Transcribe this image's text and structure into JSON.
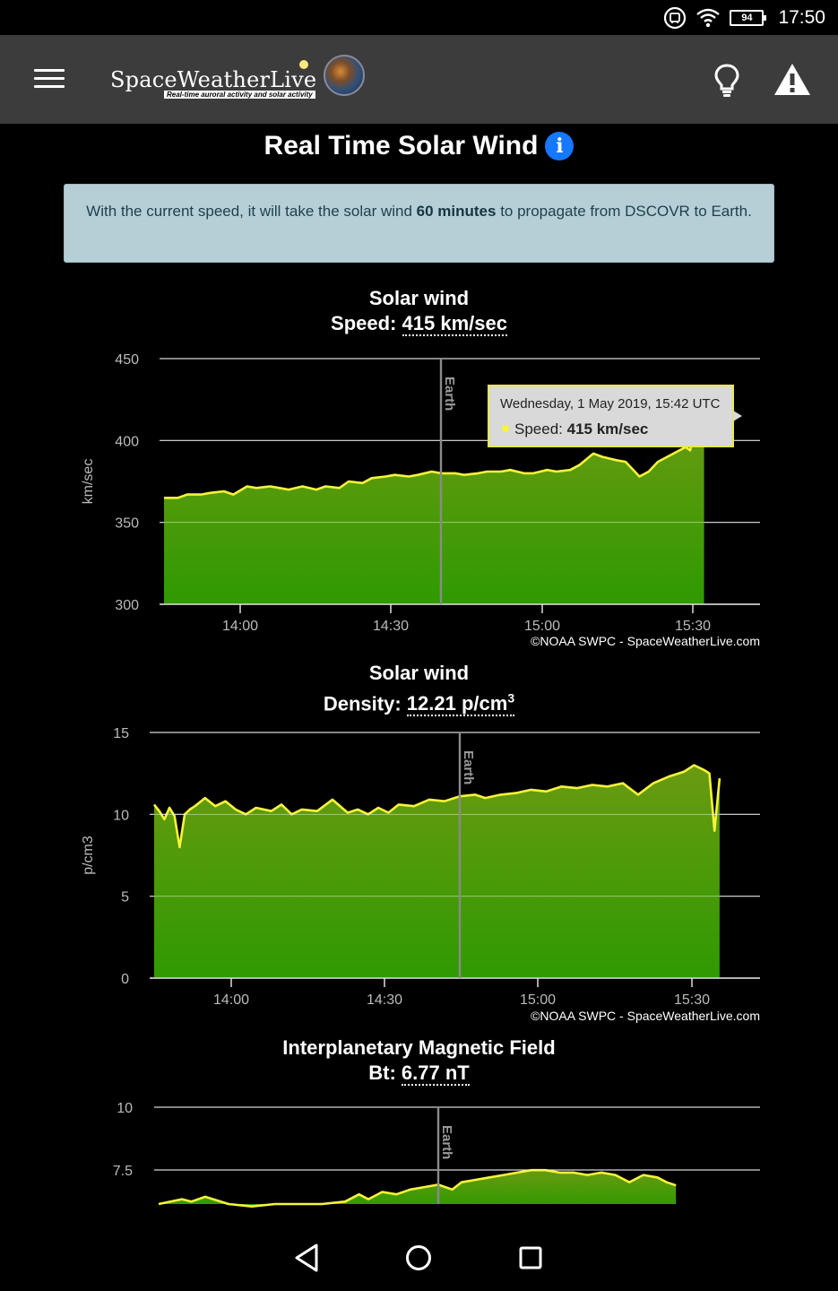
{
  "status": {
    "time": "17:50",
    "battery": "94"
  },
  "app": {
    "logo_text": "SpaceWeatherLive",
    "logo_subtitle": "Real-time auroral activity and solar activity"
  },
  "page": {
    "title": "Real Time Solar Wind"
  },
  "info": {
    "text_before": "With the current speed, it will take the solar wind ",
    "highlight": "60 minutes",
    "text_after": " to propagate from DSCOVR to Earth."
  },
  "credit": "©NOAA SWPC - SpaceWeatherLive.com",
  "icons": {
    "menu": "menu-icon",
    "bulb": "lightbulb-icon",
    "alert": "warning-icon",
    "info": "info-icon",
    "wifi": "wifi-icon",
    "cast": "cast-icon",
    "back": "back-icon",
    "home": "home-icon",
    "recents": "recents-icon"
  },
  "colors": {
    "line": "#f5f53a",
    "fill_top": "#6a9a12",
    "fill_bottom": "#2f9a00",
    "info_box": "#b6cfd7",
    "app_bar": "#3c3c3c"
  },
  "chart_data": [
    {
      "type": "area",
      "title": "Solar wind",
      "value_label": "Speed:",
      "value": "415 km/sec",
      "ylabel": "km/sec",
      "ylim": [
        300,
        450
      ],
      "yticks": [
        "300",
        "350",
        "400",
        "450"
      ],
      "xticks": [
        "14:00",
        "14:30",
        "15:00",
        "15:30"
      ],
      "marker_label": "Earth",
      "tooltip": {
        "date": "Wednesday, 1 May 2019, 15:42 UTC",
        "label": "Speed:",
        "value": "415 km/sec"
      },
      "x_minutes_from_1400": [
        -15,
        -12,
        -10,
        -7,
        -5,
        -2,
        0,
        3,
        5,
        8,
        10,
        12,
        15,
        18,
        20,
        23,
        25,
        28,
        30,
        33,
        35,
        38,
        40,
        43,
        45,
        48,
        50,
        53,
        55,
        58,
        60,
        63,
        65,
        68,
        70,
        73,
        75,
        78,
        80,
        83,
        85,
        88,
        90,
        92,
        94,
        96,
        98,
        99,
        100,
        102
      ],
      "values": [
        365,
        365,
        367,
        367,
        368,
        369,
        367,
        372,
        371,
        372,
        371,
        370,
        372,
        370,
        372,
        371,
        375,
        374,
        377,
        378,
        379,
        378,
        379,
        381,
        380,
        380,
        379,
        380,
        381,
        381,
        382,
        380,
        380,
        382,
        381,
        382,
        385,
        392,
        390,
        388,
        387,
        378,
        381,
        387,
        390,
        393,
        396,
        394,
        410,
        415
      ]
    },
    {
      "type": "area",
      "title": "Solar wind",
      "value_label": "Density:",
      "value": "12.21 p/cm3",
      "ylabel": "p/cm3",
      "ylim": [
        0,
        15
      ],
      "yticks": [
        "0",
        "5",
        "10",
        "15"
      ],
      "xticks": [
        "14:00",
        "14:30",
        "15:00",
        "15:30"
      ],
      "marker_label": "Earth",
      "x_minutes_from_1400": [
        -15,
        -14,
        -13,
        -12,
        -11,
        -10,
        -9,
        -8,
        -7,
        -5,
        -3,
        -1,
        1,
        3,
        5,
        8,
        10,
        12,
        14,
        17,
        20,
        23,
        25,
        27,
        29,
        31,
        33,
        36,
        39,
        42,
        45,
        48,
        50,
        53,
        56,
        59,
        62,
        65,
        68,
        71,
        74,
        77,
        80,
        83,
        86,
        89,
        91,
        93,
        94,
        95,
        96
      ],
      "values": [
        10.6,
        10.2,
        9.7,
        10.4,
        9.9,
        8.0,
        10.0,
        10.3,
        10.5,
        11.0,
        10.5,
        10.8,
        10.3,
        10.0,
        10.4,
        10.2,
        10.6,
        10.0,
        10.3,
        10.2,
        10.9,
        10.1,
        10.3,
        10.0,
        10.4,
        10.1,
        10.6,
        10.5,
        10.9,
        10.8,
        11.1,
        11.2,
        11.0,
        11.2,
        11.3,
        11.5,
        11.4,
        11.7,
        11.6,
        11.8,
        11.7,
        11.9,
        11.2,
        11.9,
        12.3,
        12.6,
        13.0,
        12.7,
        12.5,
        9.0,
        12.2
      ]
    },
    {
      "type": "area",
      "title": "Interplanetary Magnetic Field",
      "value_label": "Bt:",
      "value": "6.77 nT",
      "ylabel": "",
      "ylim": [
        6,
        10
      ],
      "yticks": [
        "7.5",
        "10"
      ],
      "xticks": [],
      "marker_label": "Earth",
      "x_minutes_from_1400": [
        -15,
        -10,
        -8,
        -5,
        0,
        5,
        10,
        15,
        20,
        25,
        28,
        30,
        33,
        36,
        39,
        42,
        45,
        48,
        50,
        53,
        56,
        59,
        62,
        65,
        68,
        71,
        74,
        77,
        80,
        83,
        86,
        89,
        92,
        94,
        96
      ],
      "values": [
        6.0,
        6.2,
        6.1,
        6.3,
        6.0,
        5.9,
        6.0,
        6.0,
        6.0,
        6.1,
        6.4,
        6.2,
        6.5,
        6.4,
        6.6,
        6.7,
        6.8,
        6.6,
        6.9,
        7.0,
        7.1,
        7.2,
        7.3,
        7.4,
        7.4,
        7.3,
        7.3,
        7.2,
        7.3,
        7.2,
        6.9,
        7.2,
        7.1,
        6.9,
        6.77
      ]
    }
  ]
}
